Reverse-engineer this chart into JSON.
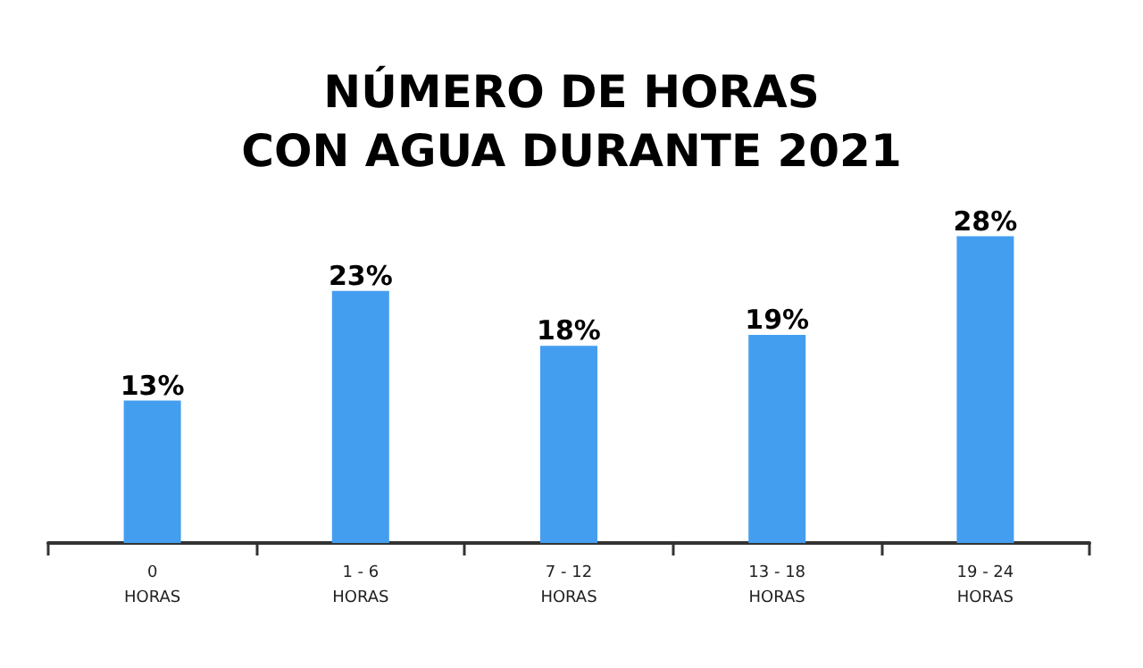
{
  "chart_data": {
    "type": "bar",
    "title": "NÚMERO DE HORAS\nCON AGUA DURANTE 2021",
    "categories": [
      "0\nHORAS",
      "1 - 6\nHORAS",
      "7 - 12\nHORAS",
      "13 - 18\nHORAS",
      "19 - 24\nHORAS"
    ],
    "values": [
      13,
      23,
      18,
      19,
      28
    ],
    "color": "#449ef0",
    "value_labels": [
      "13%",
      "23%",
      "18%",
      "19%",
      "28%"
    ],
    "tick_labels": "x"
  }
}
